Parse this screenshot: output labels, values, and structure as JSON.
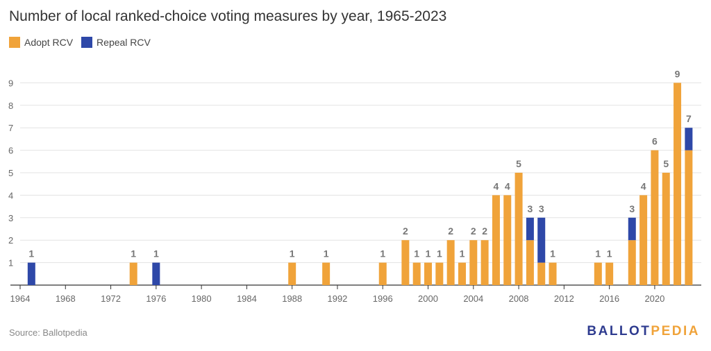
{
  "header": {
    "title": "Number of local ranked-choice voting measures by year, 1965-2023"
  },
  "legend": {
    "adopt": "Adopt RCV",
    "repeal": "Repeal RCV"
  },
  "footer": {
    "source": "Source: Ballotpedia",
    "logo_part1": "BALLOT",
    "logo_part2": "PEDIA"
  },
  "colors": {
    "adopt": "#f0a33a",
    "repeal": "#2e48a8",
    "grid": "#e3e3e3",
    "axis": "#333333",
    "tick": "#666666",
    "label": "#777777"
  },
  "chart_data": {
    "type": "bar",
    "stacked": true,
    "title": "Number of local ranked-choice voting measures by year, 1965-2023",
    "xlabel": "",
    "ylabel": "",
    "xlim": [
      1964,
      2023
    ],
    "ylim": [
      0,
      9
    ],
    "yticks": [
      1,
      2,
      3,
      4,
      5,
      6,
      7,
      8,
      9
    ],
    "xticks": [
      "1964",
      "1968",
      "1972",
      "1976",
      "1980",
      "1984",
      "1988",
      "1992",
      "1996",
      "2000",
      "2004",
      "2008",
      "2012",
      "2016",
      "2020"
    ],
    "grid": true,
    "legend_position": "top-left",
    "x": [
      1965,
      1974,
      1976,
      1988,
      1991,
      1996,
      1998,
      1999,
      2000,
      2001,
      2002,
      2003,
      2004,
      2005,
      2006,
      2007,
      2008,
      2009,
      2010,
      2011,
      2015,
      2016,
      2018,
      2019,
      2020,
      2021,
      2022,
      2023
    ],
    "series": [
      {
        "name": "Adopt RCV",
        "values": [
          0,
          1,
          0,
          1,
          1,
          1,
          2,
          1,
          1,
          1,
          2,
          1,
          2,
          2,
          4,
          4,
          5,
          2,
          1,
          1,
          1,
          1,
          2,
          4,
          6,
          5,
          9,
          6
        ]
      },
      {
        "name": "Repeal RCV",
        "values": [
          1,
          0,
          1,
          0,
          0,
          0,
          0,
          0,
          0,
          0,
          0,
          0,
          0,
          0,
          0,
          0,
          0,
          1,
          2,
          0,
          0,
          0,
          1,
          0,
          0,
          0,
          0,
          1
        ]
      }
    ],
    "totals": [
      "1",
      "1",
      "1",
      "1",
      "1",
      "1",
      "2",
      "1",
      "1",
      "1",
      "2",
      "1",
      "2",
      "2",
      "4",
      "4",
      "5",
      "3",
      "3",
      "1",
      "1",
      "1",
      "3",
      "4",
      "6",
      "5",
      "9",
      "7"
    ]
  }
}
